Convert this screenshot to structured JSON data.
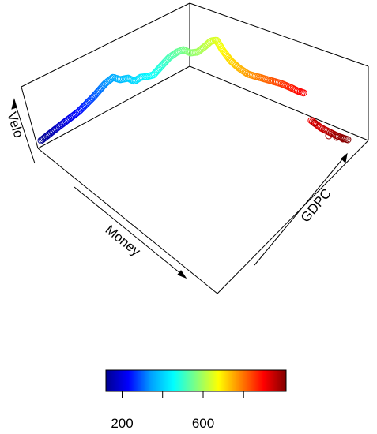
{
  "chart_data": {
    "type": "scatter",
    "subtype": "3d-scatter",
    "xlabel": "Money",
    "ylabel": "GDPC",
    "zlabel": "Velo",
    "color_variable_range": [
      120,
      1010
    ],
    "colorbar": {
      "palette": "jet",
      "colors": [
        "#00008f",
        "#0000ff",
        "#00a0ff",
        "#00ffff",
        "#80ff80",
        "#ffff00",
        "#ff8000",
        "#ff0000",
        "#800000"
      ],
      "tick_labels": [
        "200",
        "600"
      ],
      "tick_values": [
        200,
        400,
        600,
        800
      ],
      "labeled_ticks": [
        200,
        600
      ]
    },
    "grid": false,
    "legend": "none"
  }
}
